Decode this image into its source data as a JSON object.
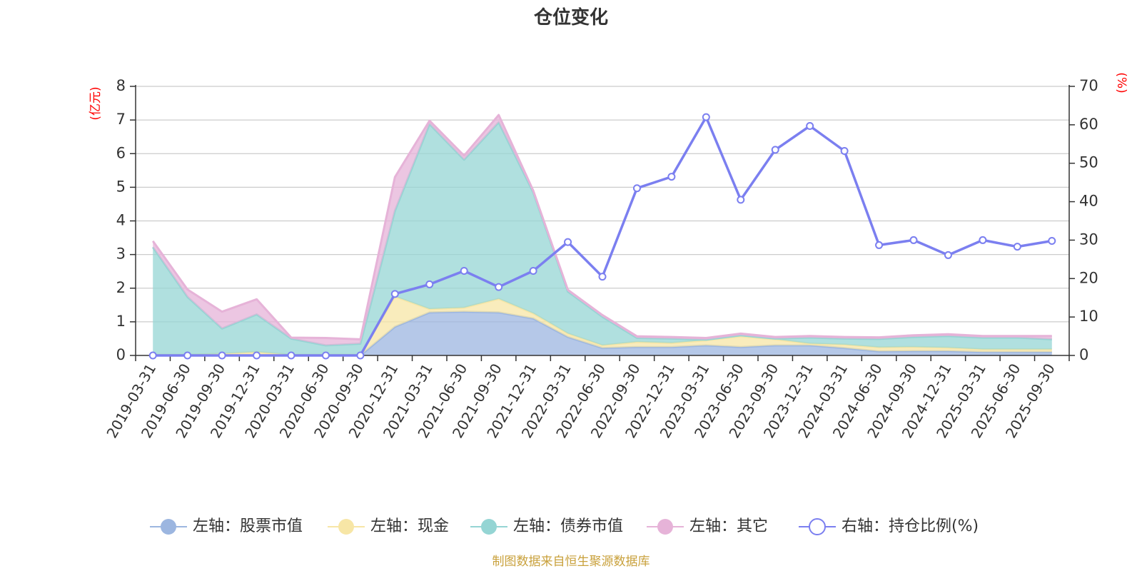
{
  "title": "仓位变化",
  "left_axis_unit": "(亿元)",
  "right_axis_unit": "(%)",
  "footer": "制图数据来自恒生聚源数据库",
  "colors": {
    "stock": "#9cb6e0",
    "cash": "#f7e6a6",
    "bond": "#95d5d4",
    "other": "#e6b3d8",
    "ratio": "#7b7ff0",
    "grid": "#cccccc",
    "axis": "#333333"
  },
  "legend": [
    {
      "key": "stock",
      "label": "左轴：股票市值",
      "marker": "filled-circle"
    },
    {
      "key": "cash",
      "label": "左轴：现金",
      "marker": "filled-circle"
    },
    {
      "key": "bond",
      "label": "左轴：债券市值",
      "marker": "filled-circle"
    },
    {
      "key": "other",
      "label": "左轴：其它",
      "marker": "filled-circle"
    },
    {
      "key": "ratio",
      "label": "右轴：持仓比例(%)",
      "marker": "hollow-circle"
    }
  ],
  "chart_data": {
    "type": "area",
    "stacked": true,
    "title": "仓位变化",
    "categories": [
      "2019-03-31",
      "2019-06-30",
      "2019-09-30",
      "2019-12-31",
      "2020-03-31",
      "2020-06-30",
      "2020-09-30",
      "2020-12-31",
      "2021-03-31",
      "2021-06-30",
      "2021-09-30",
      "2021-12-31",
      "2022-03-31",
      "2022-06-30",
      "2022-09-30",
      "2022-12-31",
      "2023-03-31",
      "2023-06-30",
      "2023-09-30",
      "2023-12-31",
      "2024-03-31",
      "2024-06-30",
      "2024-09-30",
      "2024-12-31",
      "2025-03-31",
      "2025-06-30",
      "2025-09-30"
    ],
    "left_axis": {
      "unit": "(亿元)",
      "ylim": [
        0,
        8
      ],
      "ticks": [
        0,
        1,
        2,
        3,
        4,
        5,
        6,
        7,
        8
      ]
    },
    "right_axis": {
      "unit": "(%)",
      "ylim": [
        0,
        70
      ],
      "ticks": [
        0,
        10,
        20,
        30,
        40,
        50,
        60,
        70
      ]
    },
    "series": [
      {
        "name": "左轴：股票市值",
        "axis": "left",
        "key": "stock",
        "values": [
          0,
          0,
          0,
          0,
          0,
          0,
          0,
          0.85,
          1.28,
          1.3,
          1.28,
          1.1,
          0.55,
          0.22,
          0.25,
          0.25,
          0.3,
          0.25,
          0.3,
          0.3,
          0.22,
          0.12,
          0.13,
          0.13,
          0.1,
          0.1,
          0.1
        ]
      },
      {
        "name": "左轴：现金",
        "axis": "left",
        "key": "cash",
        "values": [
          0.02,
          0.02,
          0.05,
          0.1,
          0.02,
          0.02,
          0.02,
          0.9,
          0.1,
          0.12,
          0.4,
          0.15,
          0.1,
          0.08,
          0.15,
          0.12,
          0.15,
          0.32,
          0.18,
          0.05,
          0.1,
          0.12,
          0.12,
          0.1,
          0.08,
          0.08,
          0.08
        ]
      },
      {
        "name": "左轴：债券市值",
        "axis": "left",
        "key": "bond",
        "values": [
          3.2,
          1.72,
          0.75,
          1.12,
          0.48,
          0.28,
          0.33,
          2.55,
          5.5,
          4.4,
          5.25,
          3.6,
          1.25,
          0.85,
          0.12,
          0.13,
          0.02,
          0.03,
          0.02,
          0.18,
          0.18,
          0.25,
          0.3,
          0.35,
          0.35,
          0.35,
          0.3
        ]
      },
      {
        "name": "左轴：其它",
        "axis": "left",
        "key": "other",
        "values": [
          0.18,
          0.22,
          0.5,
          0.45,
          0.03,
          0.22,
          0.13,
          1.0,
          0.1,
          0.12,
          0.22,
          0.05,
          0.05,
          0.05,
          0.05,
          0.05,
          0.05,
          0.05,
          0.05,
          0.05,
          0.05,
          0.05,
          0.05,
          0.05,
          0.05,
          0.05,
          0.1
        ]
      },
      {
        "name": "右轴：持仓比例(%)",
        "axis": "right",
        "key": "ratio",
        "type": "line",
        "values": [
          0,
          0,
          0,
          0,
          0,
          0,
          0,
          16,
          18.5,
          22,
          17.8,
          22,
          29.5,
          20.5,
          43.5,
          46.5,
          62,
          40.5,
          53.5,
          59.7,
          53.2,
          28.7,
          30,
          26.1,
          30,
          28.3,
          29.8
        ]
      }
    ]
  }
}
